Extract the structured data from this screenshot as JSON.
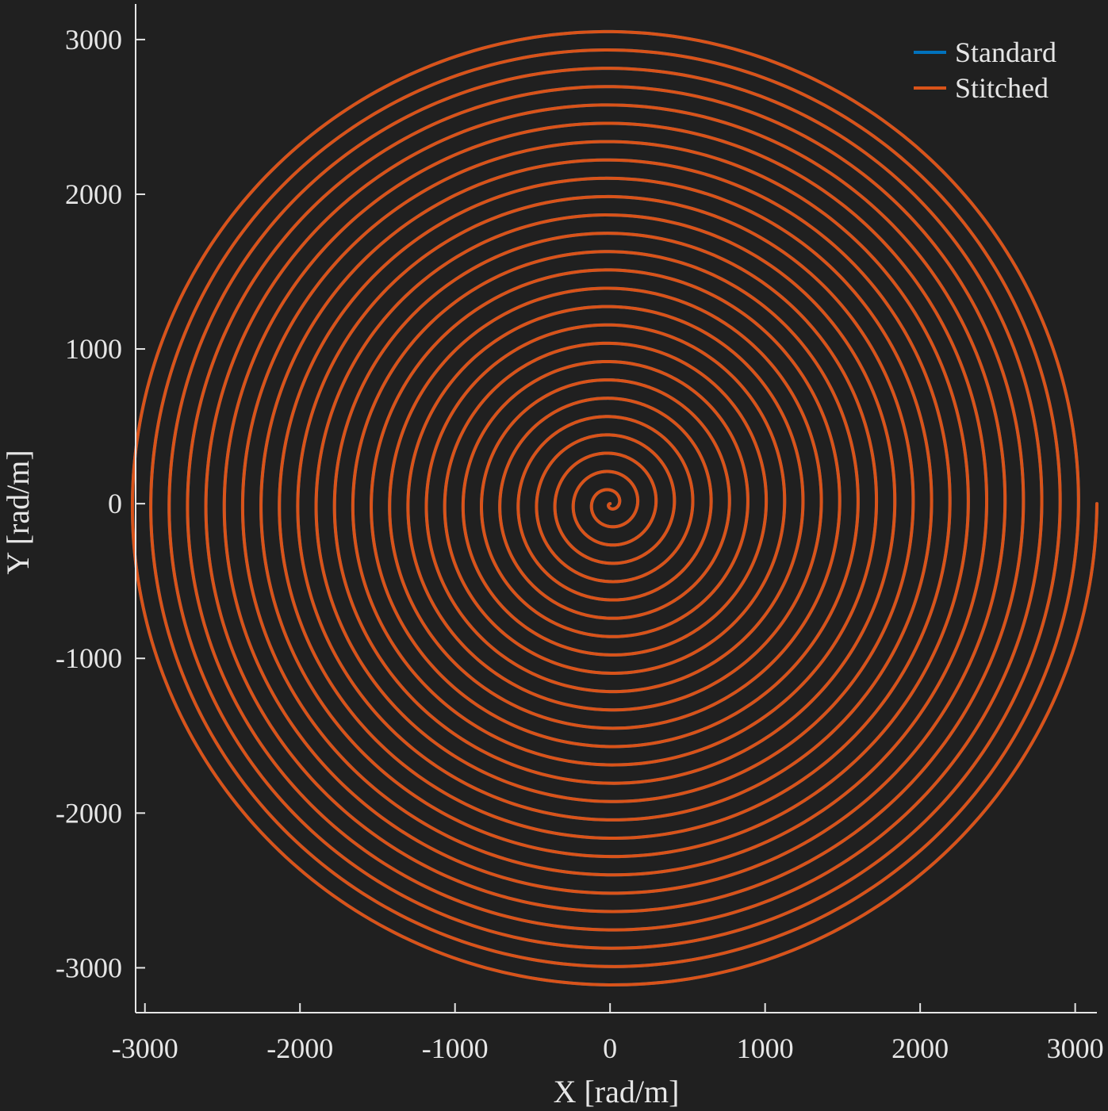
{
  "chart_data": {
    "type": "line",
    "xlabel": "X [rad/m]",
    "ylabel": "Y [rad/m]",
    "xlim": [
      -3060,
      3140
    ],
    "ylim": [
      -3290,
      3230
    ],
    "xticks": [
      -3000,
      -2000,
      -1000,
      0,
      1000,
      2000,
      3000
    ],
    "yticks": [
      -3000,
      -2000,
      -1000,
      0,
      1000,
      2000,
      3000
    ],
    "xtick_labels": [
      "-3000",
      "-2000",
      "-1000",
      "0",
      "1000",
      "2000",
      "3000"
    ],
    "ytick_labels": [
      "-3000",
      "-2000",
      "-1000",
      "0",
      "1000",
      "2000",
      "3000"
    ],
    "grid": false,
    "legend_position": "top-right",
    "series": [
      {
        "name": "Standard",
        "color": "#0072BD",
        "shape": "archimedean-spiral",
        "turns": 26.5,
        "max_radius": 3140,
        "visible_under_stitched": true
      },
      {
        "name": "Stitched",
        "color": "#D95319",
        "shape": "archimedean-spiral",
        "turns": 26.5,
        "max_radius": 3140,
        "end_point": [
          3140,
          0
        ]
      }
    ]
  },
  "colors": {
    "background": "#202020",
    "axis": "#e6e6e6"
  }
}
